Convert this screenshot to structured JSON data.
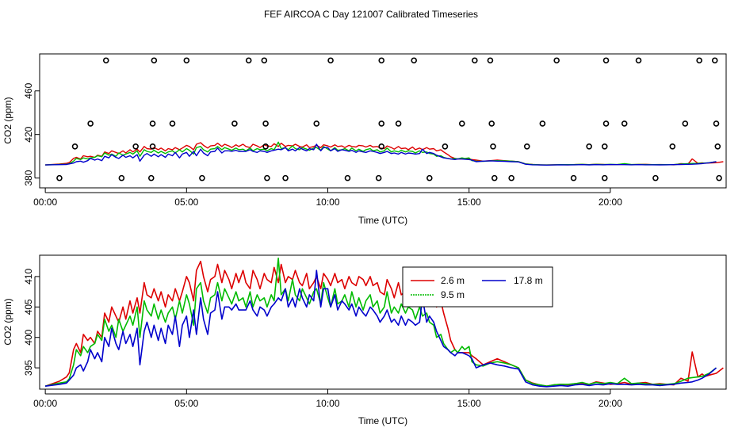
{
  "figure": {
    "title": "FEF AIRCOA C  Day 121007  Calibrated Timeseries"
  },
  "chart_data": [
    {
      "type": "line",
      "panel": "top",
      "xlabel": "Time (UTC)",
      "ylabel": "CO2 (ppm)",
      "xlim": [
        -0.2,
        24.1
      ],
      "ylim": [
        371,
        494
      ],
      "x_ticks": [
        0,
        5,
        10,
        15,
        20
      ],
      "x_tick_labels": [
        "00:00",
        "05:00",
        "10:00",
        "15:00",
        "20:00"
      ],
      "y_ticks": [
        380,
        420,
        460
      ],
      "y_tick_labels": [
        "380",
        "420",
        "460"
      ],
      "grid": false,
      "series_colors": [
        "#dd0000",
        "#00bb00",
        "#0000cc"
      ],
      "point_style": "open circles",
      "point_color": "#000000",
      "points": [
        {
          "x": 2.15,
          "y": 488
        },
        {
          "x": 3.85,
          "y": 488
        },
        {
          "x": 5.0,
          "y": 488
        },
        {
          "x": 7.2,
          "y": 488
        },
        {
          "x": 7.75,
          "y": 488
        },
        {
          "x": 10.1,
          "y": 488
        },
        {
          "x": 11.9,
          "y": 488
        },
        {
          "x": 13.05,
          "y": 488
        },
        {
          "x": 15.2,
          "y": 488
        },
        {
          "x": 15.75,
          "y": 488
        },
        {
          "x": 18.1,
          "y": 488
        },
        {
          "x": 19.85,
          "y": 488
        },
        {
          "x": 21.0,
          "y": 488
        },
        {
          "x": 23.15,
          "y": 488
        },
        {
          "x": 23.7,
          "y": 488
        },
        {
          "x": 1.6,
          "y": 430
        },
        {
          "x": 3.8,
          "y": 430
        },
        {
          "x": 4.5,
          "y": 430
        },
        {
          "x": 6.7,
          "y": 430
        },
        {
          "x": 7.8,
          "y": 430
        },
        {
          "x": 9.6,
          "y": 430
        },
        {
          "x": 11.9,
          "y": 430
        },
        {
          "x": 12.5,
          "y": 430
        },
        {
          "x": 14.75,
          "y": 430
        },
        {
          "x": 15.8,
          "y": 430
        },
        {
          "x": 17.6,
          "y": 430
        },
        {
          "x": 19.85,
          "y": 430
        },
        {
          "x": 20.5,
          "y": 430
        },
        {
          "x": 22.65,
          "y": 430
        },
        {
          "x": 23.75,
          "y": 430
        },
        {
          "x": 1.05,
          "y": 409
        },
        {
          "x": 3.2,
          "y": 409
        },
        {
          "x": 3.8,
          "y": 409
        },
        {
          "x": 7.8,
          "y": 409
        },
        {
          "x": 11.9,
          "y": 409
        },
        {
          "x": 14.15,
          "y": 409
        },
        {
          "x": 15.85,
          "y": 409
        },
        {
          "x": 17.05,
          "y": 409
        },
        {
          "x": 19.25,
          "y": 409
        },
        {
          "x": 19.8,
          "y": 409
        },
        {
          "x": 22.2,
          "y": 409
        },
        {
          "x": 23.8,
          "y": 409
        },
        {
          "x": 0.5,
          "y": 380
        },
        {
          "x": 2.7,
          "y": 380
        },
        {
          "x": 3.75,
          "y": 380
        },
        {
          "x": 5.55,
          "y": 380
        },
        {
          "x": 7.85,
          "y": 380
        },
        {
          "x": 8.5,
          "y": 380
        },
        {
          "x": 10.7,
          "y": 380
        },
        {
          "x": 11.8,
          "y": 380
        },
        {
          "x": 13.6,
          "y": 380
        },
        {
          "x": 15.9,
          "y": 380
        },
        {
          "x": 16.5,
          "y": 380
        },
        {
          "x": 18.7,
          "y": 380
        },
        {
          "x": 19.8,
          "y": 380
        },
        {
          "x": 21.6,
          "y": 380
        },
        {
          "x": 23.85,
          "y": 380
        }
      ]
    },
    {
      "type": "line",
      "panel": "bottom",
      "xlabel": "Time (UTC)",
      "ylabel": "CO2 (ppm)",
      "xlim": [
        -0.2,
        24.1
      ],
      "ylim": [
        391.5,
        413.5
      ],
      "x_ticks": [
        0,
        5,
        10,
        15,
        20
      ],
      "x_tick_labels": [
        "00:00",
        "05:00",
        "10:00",
        "15:00",
        "20:00"
      ],
      "y_ticks": [
        395,
        400,
        405,
        410
      ],
      "y_tick_labels": [
        "395",
        "400",
        "405",
        "410"
      ],
      "grid": false,
      "legend_position": "top-right",
      "series": [
        {
          "name": "2.6 m",
          "color": "#dd0000"
        },
        {
          "name": "9.5 m",
          "color": "#00bb00"
        },
        {
          "name": "17.8 m",
          "color": "#0000cc"
        }
      ],
      "x": [
        0.0,
        0.5,
        0.75,
        0.85,
        1.0,
        1.1,
        1.25,
        1.35,
        1.5,
        1.6,
        1.75,
        1.85,
        2.0,
        2.1,
        2.25,
        2.35,
        2.5,
        2.6,
        2.75,
        2.85,
        3.0,
        3.1,
        3.25,
        3.35,
        3.5,
        3.6,
        3.75,
        3.85,
        4.0,
        4.1,
        4.25,
        4.35,
        4.5,
        4.6,
        4.75,
        4.85,
        5.0,
        5.1,
        5.25,
        5.35,
        5.5,
        5.6,
        5.75,
        5.85,
        6.0,
        6.1,
        6.25,
        6.35,
        6.5,
        6.6,
        6.75,
        6.85,
        7.0,
        7.1,
        7.25,
        7.35,
        7.5,
        7.6,
        7.75,
        7.85,
        8.0,
        8.1,
        8.25,
        8.35,
        8.5,
        8.6,
        8.75,
        8.85,
        9.0,
        9.1,
        9.25,
        9.35,
        9.5,
        9.6,
        9.75,
        9.85,
        10.0,
        10.1,
        10.25,
        10.35,
        10.5,
        10.6,
        10.75,
        10.85,
        11.0,
        11.1,
        11.25,
        11.35,
        11.5,
        11.6,
        11.75,
        11.85,
        12.0,
        12.1,
        12.25,
        12.35,
        12.5,
        12.6,
        12.75,
        12.85,
        13.0,
        13.1,
        13.25,
        13.35,
        13.5,
        13.6,
        13.75,
        13.85,
        14.0,
        14.1,
        14.25,
        14.35,
        14.5,
        14.6,
        14.75,
        14.85,
        15.0,
        15.1,
        15.25,
        15.5,
        15.75,
        16.0,
        16.25,
        16.5,
        16.75,
        17.0,
        17.25,
        17.5,
        17.75,
        18.0,
        18.25,
        18.5,
        18.75,
        19.0,
        19.25,
        19.5,
        19.75,
        20.0,
        20.25,
        20.5,
        20.75,
        21.0,
        21.25,
        21.5,
        21.75,
        22.0,
        22.25,
        22.5,
        22.75,
        22.9,
        23.1,
        23.25,
        23.35,
        23.5,
        23.75,
        24.0
      ],
      "values_2_6m": [
        392.0,
        392.8,
        393.5,
        394.2,
        398.0,
        399.0,
        397.5,
        400.5,
        399.5,
        400.0,
        399.0,
        401.0,
        400.0,
        404.0,
        402.5,
        405.0,
        403.5,
        402.5,
        405.0,
        403.0,
        406.0,
        404.0,
        406.5,
        404.0,
        409.0,
        407.0,
        406.5,
        408.0,
        406.0,
        407.5,
        405.0,
        407.0,
        406.0,
        408.0,
        406.0,
        407.5,
        410.0,
        409.0,
        406.0,
        411.0,
        412.5,
        410.0,
        407.5,
        409.5,
        410.0,
        412.0,
        409.0,
        411.0,
        409.5,
        408.0,
        410.5,
        409.0,
        411.0,
        409.0,
        408.0,
        411.0,
        409.5,
        408.0,
        410.5,
        409.5,
        409.0,
        411.5,
        409.0,
        412.0,
        409.0,
        410.0,
        409.5,
        411.0,
        409.0,
        408.5,
        410.5,
        408.0,
        409.0,
        410.0,
        408.0,
        410.5,
        409.5,
        408.5,
        410.5,
        409.0,
        409.5,
        408.0,
        410.0,
        409.0,
        408.5,
        410.0,
        409.5,
        408.5,
        410.0,
        408.5,
        409.0,
        407.5,
        407.0,
        409.5,
        408.0,
        406.5,
        409.0,
        407.0,
        407.5,
        406.0,
        408.5,
        406.0,
        407.5,
        406.0,
        408.0,
        406.5,
        407.0,
        405.0,
        406.0,
        404.0,
        401.5,
        399.5,
        398.0,
        397.5,
        397.5,
        397.5,
        397.5,
        397.0,
        396.5,
        395.5,
        396.0,
        396.5,
        396.0,
        395.5,
        395.0,
        393.0,
        392.5,
        392.2,
        392.0,
        392.2,
        392.3,
        392.2,
        392.4,
        392.5,
        392.3,
        392.7,
        392.5,
        392.3,
        392.4,
        392.6,
        392.3,
        392.5,
        392.6,
        392.3,
        392.4,
        392.3,
        392.2,
        393.3,
        392.8,
        397.6,
        393.5,
        394.0,
        393.6,
        393.8,
        394.1,
        395.0
      ],
      "values_9_5m": [
        392.0,
        392.5,
        392.7,
        393.2,
        395.5,
        398.0,
        397.0,
        398.5,
        397.5,
        398.5,
        399.0,
        400.5,
        399.5,
        403.0,
        401.0,
        402.0,
        400.0,
        403.0,
        401.0,
        402.0,
        403.5,
        402.0,
        405.0,
        400.0,
        406.0,
        404.5,
        403.5,
        405.5,
        403.0,
        404.5,
        402.5,
        404.0,
        405.0,
        403.0,
        406.0,
        404.0,
        407.0,
        405.5,
        402.0,
        408.0,
        409.0,
        406.0,
        404.0,
        406.5,
        407.0,
        409.0,
        406.0,
        408.0,
        406.5,
        405.5,
        407.5,
        406.0,
        406.5,
        405.0,
        407.5,
        405.0,
        407.0,
        406.0,
        406.5,
        405.0,
        407.0,
        406.0,
        413.0,
        407.0,
        408.0,
        406.0,
        409.5,
        407.0,
        406.0,
        408.0,
        406.5,
        405.5,
        407.5,
        408.0,
        405.5,
        409.0,
        406.5,
        405.0,
        408.0,
        405.5,
        406.0,
        407.0,
        405.0,
        407.5,
        405.0,
        406.5,
        404.5,
        406.0,
        407.0,
        405.0,
        406.0,
        404.0,
        405.0,
        407.5,
        404.0,
        405.0,
        404.0,
        405.5,
        404.0,
        405.0,
        404.5,
        403.0,
        405.0,
        403.5,
        404.0,
        402.5,
        402.0,
        400.0,
        400.5,
        399.0,
        398.0,
        397.5,
        398.0,
        397.5,
        398.5,
        398.0,
        398.5,
        396.0,
        395.5,
        395.3,
        395.8,
        396.0,
        395.8,
        395.5,
        395.0,
        393.0,
        392.4,
        392.2,
        392.0,
        392.2,
        392.3,
        392.3,
        392.4,
        392.6,
        392.3,
        392.6,
        392.4,
        392.6,
        392.4,
        393.3,
        392.4,
        392.5,
        392.4,
        392.3,
        392.3,
        392.3,
        392.4,
        392.8,
        393.3,
        393.4,
        393.5,
        393.6,
        393.8,
        394.1,
        395.0
      ],
      "values_17_8m": [
        392.0,
        392.3,
        392.5,
        393.0,
        393.8,
        395.0,
        395.5,
        394.5,
        396.0,
        398.0,
        396.5,
        397.5,
        396.0,
        400.0,
        398.5,
        401.5,
        399.0,
        398.0,
        401.0,
        399.0,
        400.5,
        398.5,
        401.5,
        395.5,
        401.0,
        402.5,
        400.0,
        402.0,
        399.5,
        401.5,
        399.0,
        402.0,
        400.5,
        403.5,
        398.5,
        402.0,
        403.5,
        400.0,
        404.5,
        400.5,
        406.5,
        403.0,
        400.5,
        404.0,
        404.5,
        407.5,
        403.0,
        405.0,
        405.0,
        404.5,
        405.5,
        404.5,
        404.5,
        404.5,
        406.0,
        404.5,
        403.5,
        405.0,
        404.5,
        403.5,
        405.0,
        405.5,
        406.5,
        406.0,
        408.0,
        405.0,
        406.5,
        405.0,
        408.0,
        406.5,
        405.0,
        407.0,
        406.0,
        411.0,
        405.0,
        408.0,
        408.0,
        405.0,
        407.0,
        404.5,
        406.0,
        405.5,
        404.5,
        405.5,
        403.5,
        405.0,
        404.0,
        403.5,
        405.0,
        404.5,
        403.5,
        402.5,
        403.5,
        404.5,
        402.5,
        403.0,
        402.0,
        403.5,
        402.0,
        403.0,
        402.5,
        402.0,
        402.5,
        406.5,
        402.5,
        403.5,
        402.5,
        401.0,
        399.5,
        398.5,
        398.0,
        397.5,
        397.0,
        397.5,
        397.5,
        397.3,
        397.0,
        396.5,
        395.0,
        395.5,
        395.8,
        395.5,
        395.3,
        395.0,
        394.8,
        392.7,
        392.2,
        392.0,
        391.9,
        392.0,
        392.1,
        392.0,
        392.2,
        392.3,
        392.1,
        392.3,
        392.2,
        392.4,
        392.3,
        392.3,
        392.2,
        392.3,
        392.2,
        392.2,
        392.1,
        392.2,
        392.3,
        392.5,
        392.6,
        392.7,
        393.0,
        393.3,
        393.6,
        394.0,
        395.0
      ],
      "value_unit": "ppm"
    }
  ]
}
